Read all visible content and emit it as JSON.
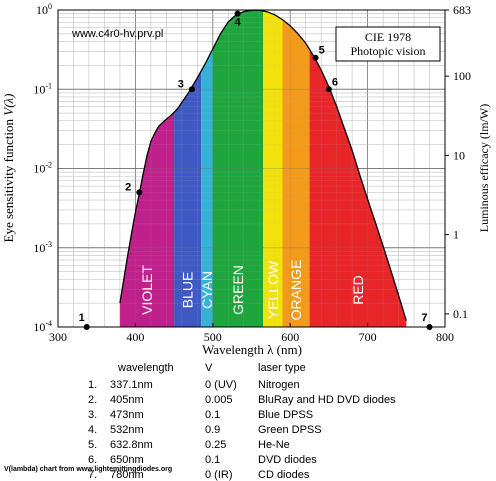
{
  "chart_data": {
    "type": "area",
    "title": "",
    "watermark": "www.c4r0-hv.prv.pl",
    "legend_box": [
      "CIE 1978",
      "Photopic vision"
    ],
    "legend_position": "top-right",
    "xlabel": "Wavelength λ  (nm)",
    "ylabel": "Eye sensitivity function",
    "ylabel_symbol": "V(λ)",
    "y2label": "Luminous efficacy   (lm/W)",
    "xlim": [
      300,
      800
    ],
    "ylim": [
      0.0001,
      1
    ],
    "yscale": "log",
    "grid": true,
    "x_ticks": [
      "300",
      "400",
      "500",
      "600",
      "700",
      "800"
    ],
    "y_ticks": [
      {
        "base": "10",
        "exp": "-4"
      },
      {
        "base": "10",
        "exp": "-3"
      },
      {
        "base": "10",
        "exp": "-2"
      },
      {
        "base": "10",
        "exp": "-1"
      },
      {
        "base": "10",
        "exp": "0"
      }
    ],
    "y2_ticks": [
      {
        "label": "683",
        "v": 1
      },
      {
        "label": "100",
        "v": 0.1464
      },
      {
        "label": "10",
        "v": 0.01464
      },
      {
        "label": "1",
        "v": 0.001464
      },
      {
        "label": "0.1",
        "v": 0.0001464
      }
    ],
    "curve": {
      "x": [
        380,
        385,
        390,
        395,
        400,
        405,
        410,
        415,
        420,
        425,
        430,
        435,
        440,
        445,
        450,
        455,
        460,
        465,
        470,
        475,
        480,
        490,
        500,
        510,
        520,
        530,
        540,
        550,
        555,
        560,
        570,
        580,
        590,
        600,
        610,
        620,
        630,
        640,
        650,
        660,
        670,
        680,
        690,
        700,
        710,
        720,
        730,
        740,
        750
      ],
      "y": [
        0.0002,
        0.0004,
        0.0008,
        0.0015,
        0.0028,
        0.0048,
        0.0085,
        0.0145,
        0.022,
        0.028,
        0.034,
        0.038,
        0.042,
        0.046,
        0.051,
        0.058,
        0.068,
        0.08,
        0.095,
        0.115,
        0.139,
        0.208,
        0.323,
        0.503,
        0.71,
        0.862,
        0.954,
        0.995,
        1.0,
        0.995,
        0.952,
        0.87,
        0.757,
        0.631,
        0.503,
        0.381,
        0.265,
        0.175,
        0.107,
        0.061,
        0.032,
        0.017,
        0.0082,
        0.0041,
        0.0021,
        0.00105,
        0.00052,
        0.00025,
        0.00012
      ]
    },
    "bands": [
      {
        "name": "VIOLET",
        "from": 380,
        "to": 450,
        "color": "#c0208c"
      },
      {
        "name": "BLUE",
        "from": 450,
        "to": 485,
        "color": "#3f59c4"
      },
      {
        "name": "CYAN",
        "from": 485,
        "to": 500,
        "color": "#36b2d8"
      },
      {
        "name": "GREEN",
        "from": 500,
        "to": 565,
        "color": "#1fa53d"
      },
      {
        "name": "YELLOW",
        "from": 565,
        "to": 590,
        "color": "#f2e10b"
      },
      {
        "name": "ORANGE",
        "from": 590,
        "to": 625,
        "color": "#f39a1a"
      },
      {
        "name": "RED",
        "from": 625,
        "to": 750,
        "color": "#e8262a"
      }
    ],
    "series": [
      {
        "x": 337.1,
        "y": 0.0001,
        "label": "1"
      },
      {
        "x": 405,
        "y": 0.005,
        "label": "2"
      },
      {
        "x": 473,
        "y": 0.1,
        "label": "3"
      },
      {
        "x": 532,
        "y": 0.9,
        "label": "4"
      },
      {
        "x": 632.8,
        "y": 0.25,
        "label": "5"
      },
      {
        "x": 650,
        "y": 0.1,
        "label": "6"
      },
      {
        "x": 780,
        "y": 0.0001,
        "label": "7"
      }
    ]
  },
  "table": {
    "headers": [
      "wavelength",
      "V",
      "laser type"
    ],
    "rows": [
      {
        "num": "1.",
        "wavelength": "337.1nm",
        "v": "0 (UV)",
        "type": "Nitrogen"
      },
      {
        "num": "2.",
        "wavelength": "405nm",
        "v": "0.005",
        "type": "BluRay and HD DVD diodes"
      },
      {
        "num": "3.",
        "wavelength": "473nm",
        "v": "0.1",
        "type": "Blue DPSS"
      },
      {
        "num": "4.",
        "wavelength": "532nm",
        "v": "0.9",
        "type": "Green DPSS"
      },
      {
        "num": "5.",
        "wavelength": "632.8nm",
        "v": "0.25",
        "type": "He-Ne"
      },
      {
        "num": "6.",
        "wavelength": "650nm",
        "v": "0.1",
        "type": "DVD diodes"
      },
      {
        "num": "7.",
        "wavelength": "780nm",
        "v": "0 (IR)",
        "type": "CD diodes"
      }
    ]
  },
  "credit": "V(lambda) chart from www.lightemittingdiodes.org"
}
